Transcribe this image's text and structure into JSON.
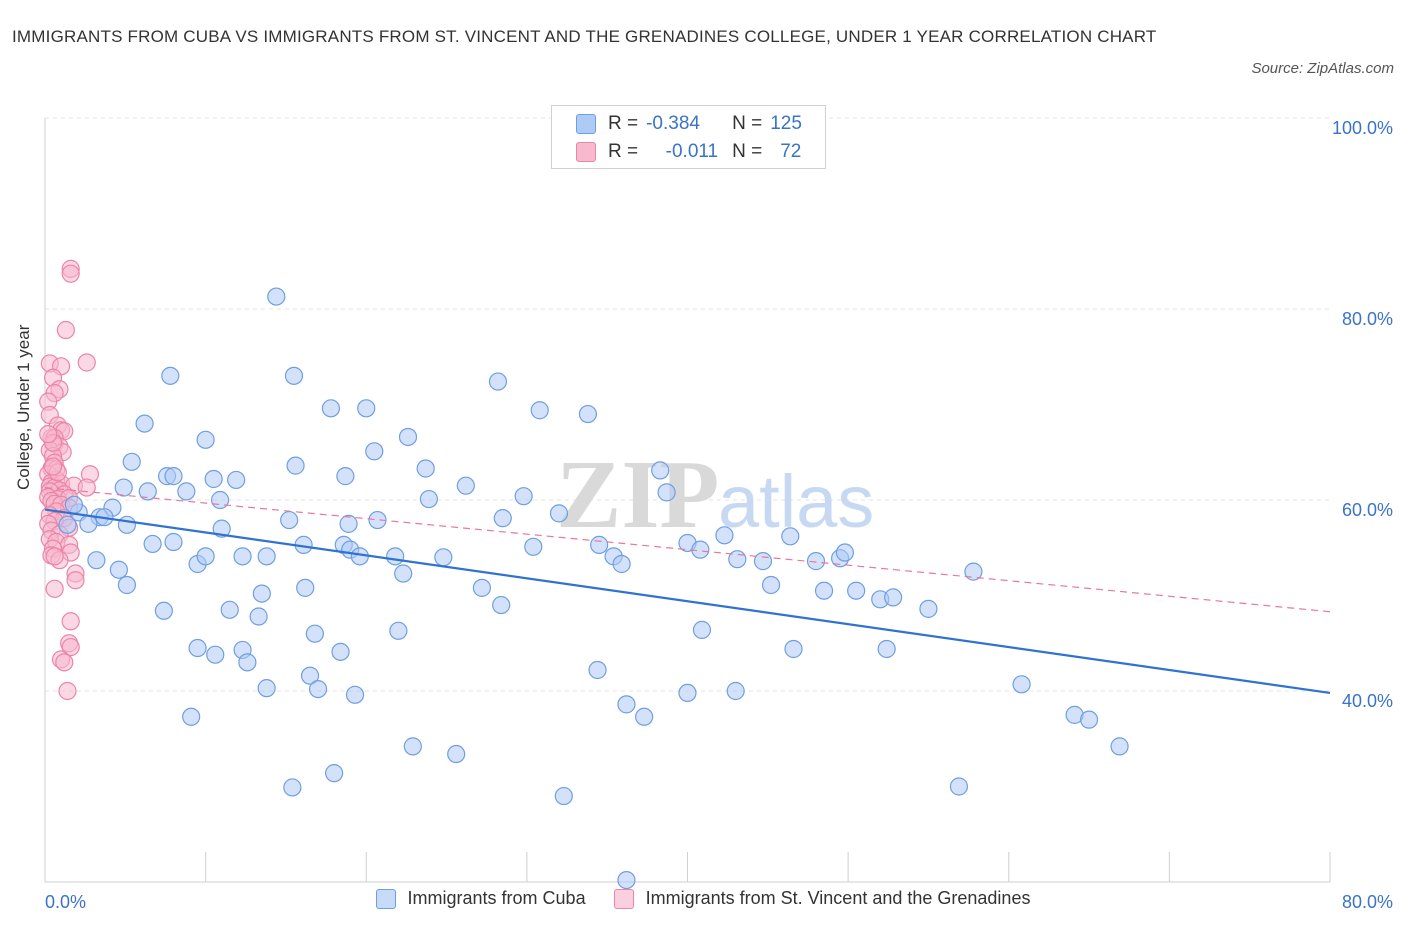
{
  "header": {
    "title": "IMMIGRANTS FROM CUBA VS IMMIGRANTS FROM ST. VINCENT AND THE GRENADINES COLLEGE, UNDER 1 YEAR CORRELATION CHART",
    "source": "Source: ZipAtlas.com"
  },
  "legend": {
    "cuba": {
      "r_label": "R =",
      "r_value": "-0.384",
      "n_label": "N =",
      "n_value": "125"
    },
    "svg": {
      "r_label": "R =",
      "r_value": "-0.011",
      "n_label": "N =",
      "n_value": "72"
    }
  },
  "watermark": {
    "zip": "ZIP",
    "atlas": "atlas"
  },
  "colors": {
    "cuba_fill": "#aecbf5",
    "cuba_stroke": "#6f9fe0",
    "cuba_line": "#2f72d0",
    "svg_fill": "#f8b8cd",
    "svg_stroke": "#eb85a8",
    "svg_line": "#e8789c",
    "tick_text": "#3a73c8",
    "grid": "#e3e3e3"
  },
  "chart_data": {
    "type": "scatter",
    "title": "IMMIGRANTS FROM CUBA VS IMMIGRANTS FROM ST. VINCENT AND THE GRENADINES COLLEGE, UNDER 1 YEAR CORRELATION CHART",
    "xlabel": "",
    "ylabel": "College, Under 1 year",
    "xlim": [
      0,
      80
    ],
    "ylim": [
      20,
      100
    ],
    "x_tick_labels": [
      "0.0%",
      "80.0%"
    ],
    "y_ticks": [
      40,
      60,
      80,
      100
    ],
    "y_tick_labels": [
      "40.0%",
      "60.0%",
      "80.0%",
      "100.0%"
    ],
    "grid": true,
    "legend_position": "bottom-center",
    "series": [
      {
        "name": "Immigrants from Cuba",
        "trend": [
          [
            0,
            59.0
          ],
          [
            80,
            39.8
          ]
        ],
        "points": [
          [
            14.4,
            81.3
          ],
          [
            7.8,
            73.0
          ],
          [
            15.5,
            73.0
          ],
          [
            17.8,
            69.6
          ],
          [
            20.0,
            69.6
          ],
          [
            28.2,
            72.4
          ],
          [
            30.8,
            69.4
          ],
          [
            33.8,
            69.0
          ],
          [
            6.2,
            68.0
          ],
          [
            10.0,
            66.3
          ],
          [
            20.5,
            65.1
          ],
          [
            22.6,
            66.6
          ],
          [
            5.4,
            64.0
          ],
          [
            7.6,
            62.5
          ],
          [
            8.0,
            62.5
          ],
          [
            10.5,
            62.2
          ],
          [
            11.9,
            62.1
          ],
          [
            15.6,
            63.6
          ],
          [
            18.7,
            62.5
          ],
          [
            23.7,
            63.3
          ],
          [
            26.2,
            61.5
          ],
          [
            38.3,
            63.1
          ],
          [
            4.9,
            61.3
          ],
          [
            6.4,
            60.9
          ],
          [
            8.8,
            60.9
          ],
          [
            10.9,
            60.0
          ],
          [
            4.2,
            59.2
          ],
          [
            3.4,
            58.2
          ],
          [
            2.1,
            58.7
          ],
          [
            2.7,
            57.5
          ],
          [
            5.1,
            57.4
          ],
          [
            1.8,
            59.5
          ],
          [
            1.4,
            57.4
          ],
          [
            15.2,
            57.9
          ],
          [
            18.9,
            57.5
          ],
          [
            20.7,
            57.9
          ],
          [
            23.9,
            60.1
          ],
          [
            29.8,
            60.4
          ],
          [
            28.5,
            58.1
          ],
          [
            32.0,
            58.6
          ],
          [
            38.7,
            60.8
          ],
          [
            46.4,
            56.2
          ],
          [
            34.5,
            55.3
          ],
          [
            35.4,
            54.1
          ],
          [
            35.9,
            53.3
          ],
          [
            40.0,
            55.5
          ],
          [
            40.8,
            54.8
          ],
          [
            42.3,
            56.3
          ],
          [
            43.1,
            53.8
          ],
          [
            44.7,
            53.6
          ],
          [
            48.0,
            53.6
          ],
          [
            49.5,
            53.9
          ],
          [
            49.8,
            54.5
          ],
          [
            16.1,
            55.3
          ],
          [
            18.6,
            55.3
          ],
          [
            19.0,
            54.8
          ],
          [
            19.6,
            54.1
          ],
          [
            21.8,
            54.1
          ],
          [
            24.8,
            54.0
          ],
          [
            22.3,
            52.3
          ],
          [
            3.2,
            53.7
          ],
          [
            4.6,
            52.7
          ],
          [
            5.1,
            51.1
          ],
          [
            6.7,
            55.4
          ],
          [
            8.0,
            55.6
          ],
          [
            9.5,
            53.3
          ],
          [
            10.0,
            54.1
          ],
          [
            12.3,
            54.1
          ],
          [
            13.8,
            54.1
          ],
          [
            16.2,
            50.8
          ],
          [
            13.5,
            50.2
          ],
          [
            27.2,
            50.8
          ],
          [
            28.4,
            49.0
          ],
          [
            45.2,
            51.1
          ],
          [
            50.5,
            50.5
          ],
          [
            52.0,
            49.6
          ],
          [
            52.8,
            49.8
          ],
          [
            55.0,
            48.6
          ],
          [
            57.8,
            52.5
          ],
          [
            7.4,
            48.4
          ],
          [
            11.5,
            48.5
          ],
          [
            13.3,
            47.8
          ],
          [
            16.8,
            46.0
          ],
          [
            22.0,
            46.3
          ],
          [
            40.9,
            46.4
          ],
          [
            9.5,
            44.5
          ],
          [
            10.6,
            43.8
          ],
          [
            12.3,
            44.3
          ],
          [
            12.6,
            43.0
          ],
          [
            16.5,
            41.6
          ],
          [
            18.4,
            44.1
          ],
          [
            34.4,
            42.2
          ],
          [
            46.6,
            44.4
          ],
          [
            52.4,
            44.4
          ],
          [
            13.8,
            40.3
          ],
          [
            17.0,
            40.2
          ],
          [
            19.3,
            39.6
          ],
          [
            36.2,
            38.6
          ],
          [
            37.3,
            37.3
          ],
          [
            40.0,
            39.8
          ],
          [
            43.0,
            40.0
          ],
          [
            60.8,
            40.7
          ],
          [
            64.1,
            37.5
          ],
          [
            65.0,
            37.0
          ],
          [
            66.9,
            34.2
          ],
          [
            9.1,
            37.3
          ],
          [
            22.9,
            34.2
          ],
          [
            25.6,
            33.4
          ],
          [
            15.4,
            29.9
          ],
          [
            18.0,
            31.4
          ],
          [
            32.3,
            29.0
          ],
          [
            56.9,
            30.0
          ],
          [
            36.2,
            20.2
          ],
          [
            11.0,
            57.0
          ],
          [
            3.7,
            58.2
          ],
          [
            30.4,
            55.1
          ],
          [
            48.5,
            50.5
          ]
        ]
      },
      {
        "name": "Immigrants from St. Vincent and the Grenadines",
        "trend": [
          [
            0,
            61.3
          ],
          [
            80,
            48.3
          ]
        ],
        "points": [
          [
            1.6,
            84.2
          ],
          [
            1.6,
            83.7
          ],
          [
            1.3,
            77.8
          ],
          [
            2.6,
            74.4
          ],
          [
            0.3,
            74.3
          ],
          [
            1.0,
            74.0
          ],
          [
            0.5,
            72.8
          ],
          [
            0.9,
            71.6
          ],
          [
            0.6,
            71.2
          ],
          [
            0.2,
            70.3
          ],
          [
            0.3,
            68.9
          ],
          [
            0.8,
            67.8
          ],
          [
            1.0,
            67.3
          ],
          [
            1.2,
            67.2
          ],
          [
            0.4,
            66.5
          ],
          [
            0.6,
            66.5
          ],
          [
            0.6,
            65.9
          ],
          [
            0.9,
            65.6
          ],
          [
            0.3,
            65.2
          ],
          [
            1.1,
            65.0
          ],
          [
            0.5,
            64.6
          ],
          [
            0.6,
            63.9
          ],
          [
            0.4,
            63.3
          ],
          [
            0.7,
            63.2
          ],
          [
            0.2,
            62.7
          ],
          [
            2.8,
            62.7
          ],
          [
            0.7,
            62.1
          ],
          [
            0.4,
            61.8
          ],
          [
            1.0,
            61.7
          ],
          [
            0.3,
            61.4
          ],
          [
            0.6,
            61.3
          ],
          [
            1.8,
            61.5
          ],
          [
            2.6,
            61.3
          ],
          [
            0.9,
            61.0
          ],
          [
            0.3,
            60.9
          ],
          [
            1.2,
            60.6
          ],
          [
            0.2,
            60.3
          ],
          [
            0.8,
            60.1
          ],
          [
            1.5,
            60.2
          ],
          [
            0.4,
            59.9
          ],
          [
            0.6,
            59.6
          ],
          [
            1.0,
            59.5
          ],
          [
            1.5,
            59.2
          ],
          [
            0.7,
            58.8
          ],
          [
            0.3,
            58.4
          ],
          [
            1.2,
            58.1
          ],
          [
            0.6,
            57.8
          ],
          [
            0.2,
            57.5
          ],
          [
            1.5,
            57.1
          ],
          [
            0.4,
            56.8
          ],
          [
            0.9,
            56.4
          ],
          [
            0.3,
            55.9
          ],
          [
            0.7,
            55.6
          ],
          [
            1.5,
            55.3
          ],
          [
            0.5,
            54.9
          ],
          [
            1.6,
            54.5
          ],
          [
            0.4,
            54.2
          ],
          [
            0.9,
            53.7
          ],
          [
            1.9,
            52.3
          ],
          [
            1.9,
            51.6
          ],
          [
            0.6,
            50.7
          ],
          [
            1.6,
            47.3
          ],
          [
            1.5,
            45.0
          ],
          [
            1.6,
            44.6
          ],
          [
            1.0,
            43.3
          ],
          [
            1.2,
            43.0
          ],
          [
            1.4,
            40.0
          ],
          [
            0.5,
            66.0
          ],
          [
            0.8,
            62.9
          ],
          [
            0.5,
            63.5
          ],
          [
            0.6,
            54.1
          ],
          [
            0.2,
            66.9
          ]
        ]
      }
    ]
  }
}
